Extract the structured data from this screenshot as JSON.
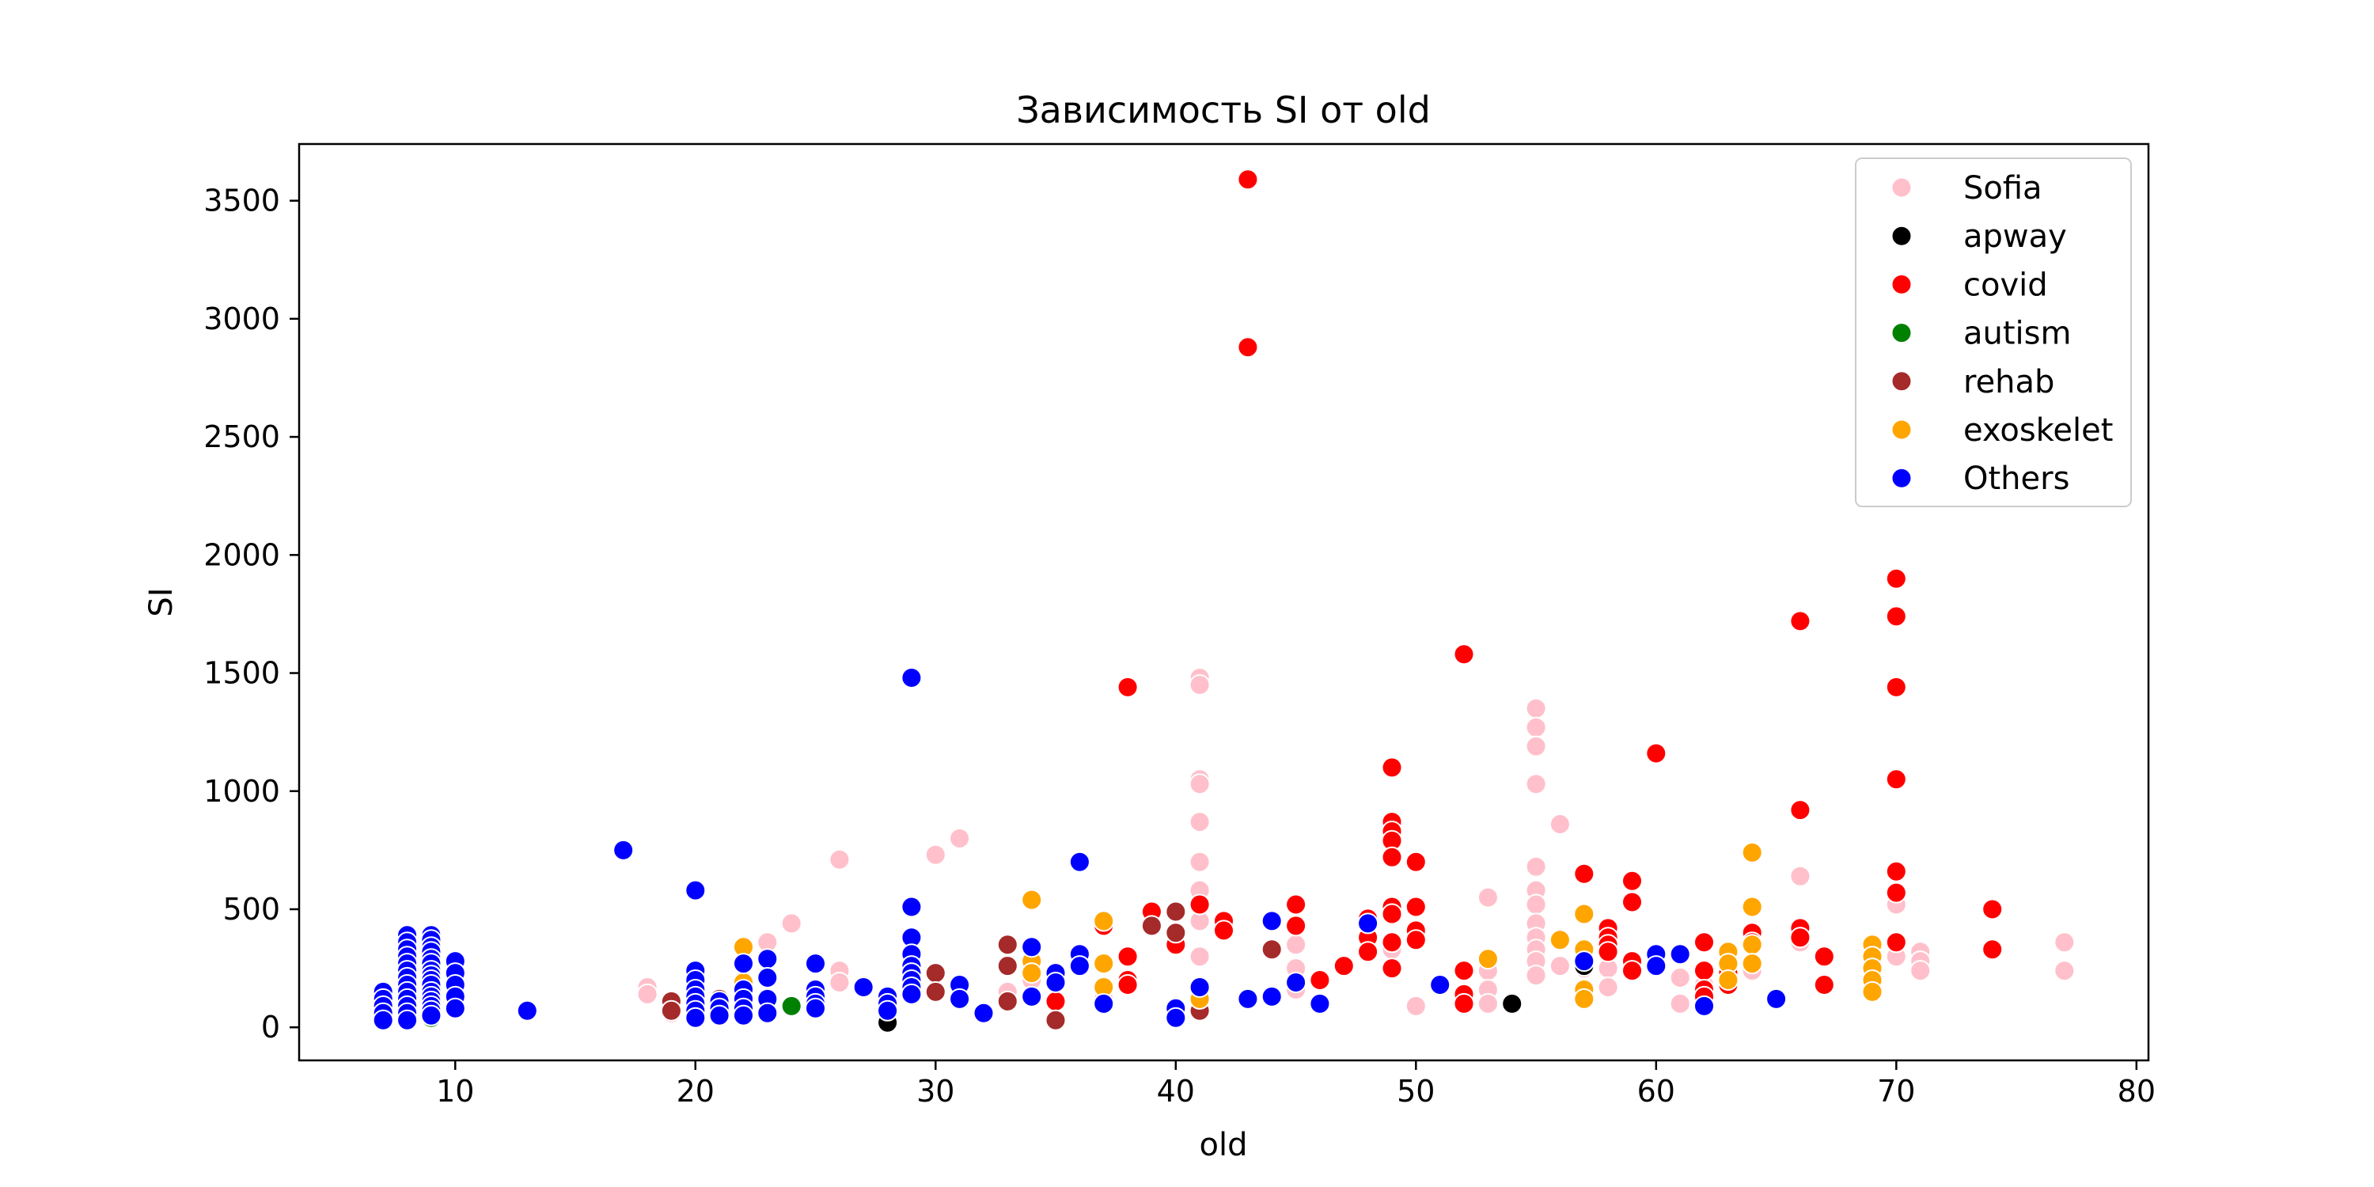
{
  "chart_data": {
    "type": "scatter",
    "title": "Зависимость SI от old",
    "xlabel": "old",
    "ylabel": "SI",
    "xlim": [
      3.5,
      80.5
    ],
    "ylim": [
      -140,
      3740
    ],
    "xticks": [
      10,
      20,
      30,
      40,
      50,
      60,
      70,
      80
    ],
    "yticks": [
      0,
      500,
      1000,
      1500,
      2000,
      2500,
      3000,
      3500
    ],
    "grid": false,
    "legend_position": "top-right",
    "series": [
      {
        "name": "Sofia",
        "color": "#ffc0cb",
        "points": [
          [
            18,
            170
          ],
          [
            18,
            140
          ],
          [
            19,
            90
          ],
          [
            19,
            60
          ],
          [
            22,
            200
          ],
          [
            23,
            360
          ],
          [
            24,
            440
          ],
          [
            26,
            710
          ],
          [
            26,
            240
          ],
          [
            26,
            190
          ],
          [
            30,
            730
          ],
          [
            31,
            800
          ],
          [
            33,
            150
          ],
          [
            34,
            200
          ],
          [
            37,
            120
          ],
          [
            38,
            200
          ],
          [
            41,
            1480
          ],
          [
            41,
            1450
          ],
          [
            41,
            1050
          ],
          [
            41,
            1030
          ],
          [
            41,
            870
          ],
          [
            41,
            700
          ],
          [
            41,
            580
          ],
          [
            41,
            450
          ],
          [
            41,
            300
          ],
          [
            41,
            120
          ],
          [
            45,
            350
          ],
          [
            45,
            250
          ],
          [
            45,
            160
          ],
          [
            49,
            330
          ],
          [
            50,
            90
          ],
          [
            53,
            550
          ],
          [
            53,
            240
          ],
          [
            53,
            160
          ],
          [
            53,
            100
          ],
          [
            55,
            1350
          ],
          [
            55,
            1270
          ],
          [
            55,
            1190
          ],
          [
            55,
            1030
          ],
          [
            55,
            680
          ],
          [
            55,
            580
          ],
          [
            55,
            520
          ],
          [
            55,
            440
          ],
          [
            55,
            380
          ],
          [
            55,
            330
          ],
          [
            55,
            280
          ],
          [
            55,
            220
          ],
          [
            56,
            860
          ],
          [
            56,
            260
          ],
          [
            57,
            250
          ],
          [
            58,
            330
          ],
          [
            58,
            250
          ],
          [
            58,
            170
          ],
          [
            61,
            210
          ],
          [
            61,
            100
          ],
          [
            62,
            180
          ],
          [
            64,
            240
          ],
          [
            66,
            640
          ],
          [
            66,
            360
          ],
          [
            70,
            520
          ],
          [
            70,
            300
          ],
          [
            71,
            320
          ],
          [
            71,
            280
          ],
          [
            71,
            240
          ],
          [
            77,
            360
          ],
          [
            77,
            240
          ]
        ]
      },
      {
        "name": "apway",
        "color": "#000000",
        "points": [
          [
            28,
            30
          ],
          [
            28,
            20
          ],
          [
            54,
            100
          ],
          [
            57,
            260
          ]
        ]
      },
      {
        "name": "covid",
        "color": "#ff0000",
        "points": [
          [
            35,
            110
          ],
          [
            37,
            430
          ],
          [
            38,
            1440
          ],
          [
            38,
            300
          ],
          [
            38,
            200
          ],
          [
            38,
            180
          ],
          [
            39,
            490
          ],
          [
            40,
            400
          ],
          [
            40,
            350
          ],
          [
            41,
            520
          ],
          [
            42,
            450
          ],
          [
            42,
            410
          ],
          [
            43,
            3590
          ],
          [
            43,
            2880
          ],
          [
            45,
            520
          ],
          [
            45,
            430
          ],
          [
            46,
            200
          ],
          [
            47,
            260
          ],
          [
            48,
            460
          ],
          [
            48,
            430
          ],
          [
            48,
            380
          ],
          [
            48,
            320
          ],
          [
            49,
            1100
          ],
          [
            49,
            870
          ],
          [
            49,
            830
          ],
          [
            49,
            790
          ],
          [
            49,
            720
          ],
          [
            49,
            510
          ],
          [
            49,
            480
          ],
          [
            49,
            360
          ],
          [
            49,
            250
          ],
          [
            50,
            700
          ],
          [
            50,
            510
          ],
          [
            50,
            410
          ],
          [
            50,
            370
          ],
          [
            52,
            1580
          ],
          [
            52,
            240
          ],
          [
            52,
            140
          ],
          [
            52,
            100
          ],
          [
            57,
            650
          ],
          [
            58,
            420
          ],
          [
            58,
            380
          ],
          [
            58,
            350
          ],
          [
            58,
            320
          ],
          [
            59,
            620
          ],
          [
            59,
            530
          ],
          [
            59,
            280
          ],
          [
            59,
            240
          ],
          [
            60,
            1160
          ],
          [
            62,
            360
          ],
          [
            62,
            240
          ],
          [
            62,
            160
          ],
          [
            62,
            130
          ],
          [
            63,
            230
          ],
          [
            63,
            180
          ],
          [
            64,
            400
          ],
          [
            64,
            360
          ],
          [
            66,
            1720
          ],
          [
            66,
            920
          ],
          [
            66,
            420
          ],
          [
            66,
            380
          ],
          [
            67,
            300
          ],
          [
            67,
            180
          ],
          [
            70,
            1900
          ],
          [
            70,
            1740
          ],
          [
            70,
            1440
          ],
          [
            70,
            1050
          ],
          [
            70,
            660
          ],
          [
            70,
            570
          ],
          [
            70,
            360
          ],
          [
            74,
            500
          ],
          [
            74,
            330
          ]
        ]
      },
      {
        "name": "autism",
        "color": "#008000",
        "points": [
          [
            9,
            40
          ],
          [
            24,
            90
          ]
        ]
      },
      {
        "name": "rehab",
        "color": "#a52a2a",
        "points": [
          [
            19,
            110
          ],
          [
            19,
            70
          ],
          [
            21,
            120
          ],
          [
            21,
            80
          ],
          [
            30,
            230
          ],
          [
            30,
            150
          ],
          [
            33,
            350
          ],
          [
            33,
            260
          ],
          [
            33,
            110
          ],
          [
            35,
            30
          ],
          [
            39,
            430
          ],
          [
            40,
            490
          ],
          [
            40,
            400
          ],
          [
            41,
            70
          ],
          [
            44,
            330
          ]
        ]
      },
      {
        "name": "exoskelet",
        "color": "#ffa500",
        "points": [
          [
            22,
            340
          ],
          [
            22,
            190
          ],
          [
            34,
            540
          ],
          [
            34,
            280
          ],
          [
            34,
            230
          ],
          [
            37,
            450
          ],
          [
            37,
            270
          ],
          [
            37,
            170
          ],
          [
            41,
            120
          ],
          [
            53,
            290
          ],
          [
            56,
            370
          ],
          [
            57,
            480
          ],
          [
            57,
            330
          ],
          [
            57,
            160
          ],
          [
            57,
            120
          ],
          [
            63,
            320
          ],
          [
            63,
            270
          ],
          [
            63,
            200
          ],
          [
            64,
            740
          ],
          [
            64,
            510
          ],
          [
            64,
            350
          ],
          [
            64,
            270
          ],
          [
            69,
            350
          ],
          [
            69,
            300
          ],
          [
            69,
            250
          ],
          [
            69,
            200
          ],
          [
            69,
            150
          ]
        ]
      },
      {
        "name": "Others",
        "color": "#0000ff",
        "points": [
          [
            7,
            150
          ],
          [
            7,
            120
          ],
          [
            7,
            90
          ],
          [
            7,
            60
          ],
          [
            7,
            30
          ],
          [
            8,
            390
          ],
          [
            8,
            360
          ],
          [
            8,
            330
          ],
          [
            8,
            300
          ],
          [
            8,
            270
          ],
          [
            8,
            240
          ],
          [
            8,
            210
          ],
          [
            8,
            180
          ],
          [
            8,
            150
          ],
          [
            8,
            120
          ],
          [
            8,
            90
          ],
          [
            8,
            60
          ],
          [
            8,
            30
          ],
          [
            9,
            390
          ],
          [
            9,
            370
          ],
          [
            9,
            340
          ],
          [
            9,
            320
          ],
          [
            9,
            290
          ],
          [
            9,
            270
          ],
          [
            9,
            240
          ],
          [
            9,
            220
          ],
          [
            9,
            200
          ],
          [
            9,
            180
          ],
          [
            9,
            150
          ],
          [
            9,
            130
          ],
          [
            9,
            110
          ],
          [
            9,
            90
          ],
          [
            9,
            70
          ],
          [
            9,
            50
          ],
          [
            10,
            280
          ],
          [
            10,
            230
          ],
          [
            10,
            180
          ],
          [
            10,
            130
          ],
          [
            10,
            80
          ],
          [
            13,
            70
          ],
          [
            17,
            750
          ],
          [
            20,
            580
          ],
          [
            20,
            240
          ],
          [
            20,
            200
          ],
          [
            20,
            160
          ],
          [
            20,
            130
          ],
          [
            20,
            100
          ],
          [
            20,
            70
          ],
          [
            20,
            40
          ],
          [
            21,
            110
          ],
          [
            21,
            80
          ],
          [
            21,
            50
          ],
          [
            22,
            270
          ],
          [
            22,
            160
          ],
          [
            22,
            120
          ],
          [
            22,
            80
          ],
          [
            22,
            50
          ],
          [
            23,
            290
          ],
          [
            23,
            210
          ],
          [
            23,
            120
          ],
          [
            23,
            60
          ],
          [
            25,
            270
          ],
          [
            25,
            160
          ],
          [
            25,
            130
          ],
          [
            25,
            100
          ],
          [
            25,
            80
          ],
          [
            27,
            170
          ],
          [
            28,
            130
          ],
          [
            28,
            100
          ],
          [
            28,
            70
          ],
          [
            29,
            1480
          ],
          [
            29,
            510
          ],
          [
            29,
            380
          ],
          [
            29,
            310
          ],
          [
            29,
            260
          ],
          [
            29,
            230
          ],
          [
            29,
            200
          ],
          [
            29,
            170
          ],
          [
            29,
            140
          ],
          [
            31,
            180
          ],
          [
            31,
            120
          ],
          [
            32,
            60
          ],
          [
            34,
            340
          ],
          [
            34,
            130
          ],
          [
            35,
            230
          ],
          [
            35,
            190
          ],
          [
            36,
            700
          ],
          [
            36,
            310
          ],
          [
            36,
            260
          ],
          [
            37,
            100
          ],
          [
            40,
            80
          ],
          [
            40,
            40
          ],
          [
            41,
            170
          ],
          [
            43,
            120
          ],
          [
            44,
            450
          ],
          [
            44,
            130
          ],
          [
            45,
            190
          ],
          [
            46,
            100
          ],
          [
            48,
            440
          ],
          [
            51,
            180
          ],
          [
            57,
            280
          ],
          [
            60,
            310
          ],
          [
            60,
            260
          ],
          [
            61,
            310
          ],
          [
            62,
            90
          ],
          [
            65,
            120
          ]
        ]
      }
    ]
  }
}
